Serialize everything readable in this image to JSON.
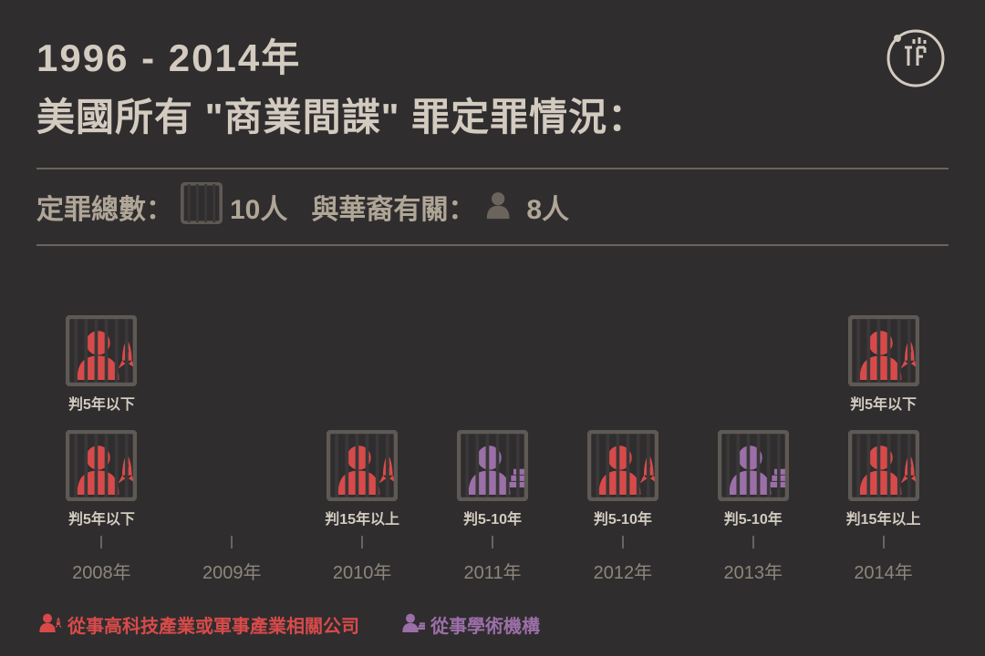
{
  "title": {
    "line1": "1996 - 2014年",
    "line2": "美國所有 \"商業間諜\" 罪定罪情況："
  },
  "colors": {
    "background": "#2f2d2e",
    "text_cream": "#d3cbc0",
    "text_muted": "#b0a697",
    "divider": "#6b645c",
    "red": "#d84a4a",
    "purple": "#9b6fa8",
    "jail_bar": "#3a3838",
    "jail_frame": "#5e5954",
    "silhouette_gray": "#6b645c"
  },
  "stats": {
    "total_label": "定罪總數：",
    "total_value": "10人",
    "chinese_label": "與華裔有關：",
    "chinese_value": "8人"
  },
  "sentence_labels": {
    "lt5": "判5年以下",
    "y5_10": "判5-10年",
    "gt15": "判15年以上"
  },
  "years": [
    "2008年",
    "2009年",
    "2010年",
    "2011年",
    "2012年",
    "2013年",
    "2014年"
  ],
  "columns": [
    {
      "year": "2008年",
      "cells": [
        {
          "type": "tech",
          "sentence": "lt5"
        },
        {
          "type": "tech",
          "sentence": "lt5"
        }
      ]
    },
    {
      "year": "2009年",
      "cells": []
    },
    {
      "year": "2010年",
      "cells": [
        {
          "type": "tech",
          "sentence": "gt15"
        }
      ]
    },
    {
      "year": "2011年",
      "cells": [
        {
          "type": "academic",
          "sentence": "y5_10"
        }
      ]
    },
    {
      "year": "2012年",
      "cells": [
        {
          "type": "tech",
          "sentence": "y5_10"
        }
      ]
    },
    {
      "year": "2013年",
      "cells": [
        {
          "type": "academic",
          "sentence": "y5_10"
        }
      ]
    },
    {
      "year": "2014年",
      "cells": [
        {
          "type": "tech",
          "sentence": "lt5"
        },
        {
          "type": "tech",
          "sentence": "gt15"
        }
      ]
    }
  ],
  "legend": {
    "tech": "從事高科技產業或軍事產業相關公司",
    "academic": "從事學術機構"
  },
  "icon_size": {
    "cell": 78,
    "stats_jail": 46,
    "stats_person": 40,
    "legend": 28
  }
}
